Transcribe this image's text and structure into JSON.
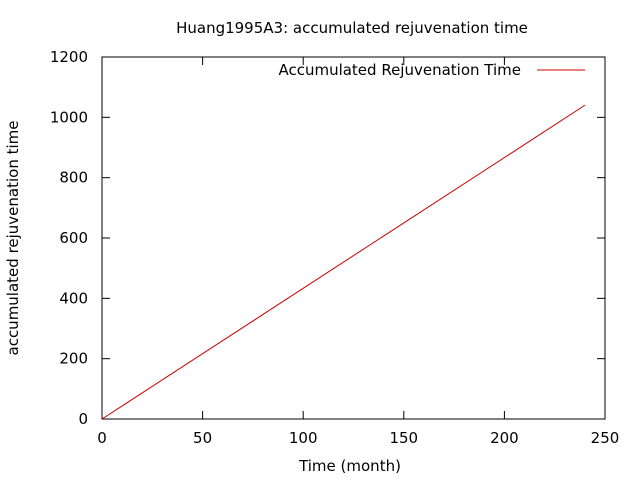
{
  "chart_data": {
    "type": "line",
    "title": "Huang1995A3: accumulated rejuvenation time",
    "xlabel": "Time (month)",
    "ylabel": "accumulated rejuvenation time",
    "xlim": [
      0,
      250
    ],
    "ylim": [
      0,
      1200
    ],
    "xticks": [
      0,
      50,
      100,
      150,
      200,
      250
    ],
    "yticks": [
      0,
      200,
      400,
      600,
      800,
      1000,
      1200
    ],
    "xtick_labels": [
      "0",
      "50",
      "100",
      "150",
      "200",
      "250"
    ],
    "ytick_labels": [
      "0",
      "200",
      "400",
      "600",
      "800",
      "1000",
      "1200"
    ],
    "grid": false,
    "legend_position": "top-right",
    "series": [
      {
        "name": "Accumulated Rejuvenation Time",
        "color": "#cc0000",
        "x": [
          0,
          240
        ],
        "y": [
          0,
          1040
        ]
      }
    ]
  }
}
